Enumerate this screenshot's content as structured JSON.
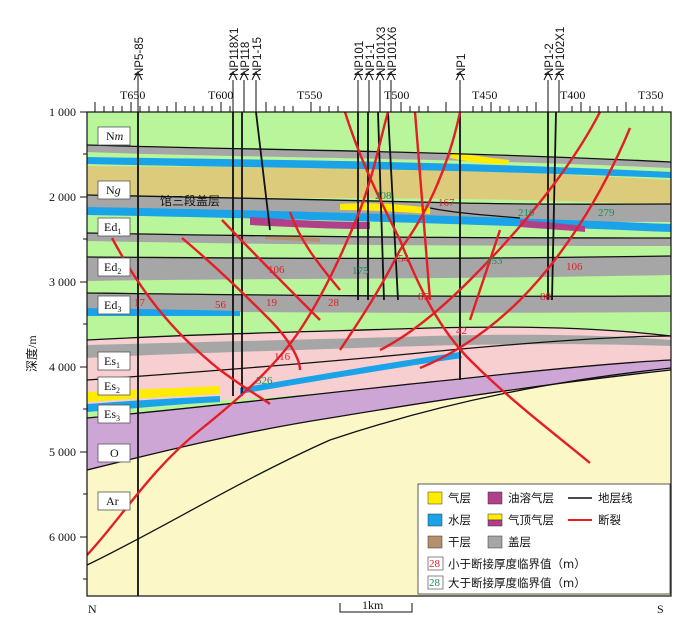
{
  "figure": {
    "y_axis_label": "深度/m",
    "depth_ticks": [
      "1 000",
      "2 000",
      "3 000",
      "4 000",
      "5 000",
      "6 000"
    ],
    "direction_left": "N",
    "direction_right": "S",
    "scale_bar": "1km",
    "seal_label": "馆三段盖层"
  },
  "wells": [
    "NP5-85",
    "NP118X1",
    "NP118",
    "NP1-15",
    "NP101",
    "NP1-1",
    "NP101X3",
    "NP101X6",
    "NP1",
    "NP1-2",
    "NP102X1"
  ],
  "traces": [
    "T650",
    "T600",
    "T550",
    "T500",
    "T450",
    "T400",
    "T350"
  ],
  "units": {
    "nm": {
      "base": "N",
      "sub": "m"
    },
    "ng": {
      "base": "N",
      "sub": "g"
    },
    "ed1": {
      "base": "Ed",
      "sub": "1"
    },
    "ed2": {
      "base": "Ed",
      "sub": "2"
    },
    "ed3": {
      "base": "Ed",
      "sub": "3"
    },
    "es1": {
      "base": "Es",
      "sub": "1"
    },
    "es2": {
      "base": "Es",
      "sub": "2"
    },
    "es3": {
      "base": "Es",
      "sub": "3"
    },
    "o": {
      "base": "O",
      "sub": ""
    },
    "ar": {
      "base": "Ar",
      "sub": ""
    }
  },
  "red_values": [
    "167",
    "106",
    "106",
    "54",
    "56",
    "19",
    "28",
    "85",
    "88",
    "17",
    "116",
    "42"
  ],
  "green_values": [
    "208",
    "210",
    "279",
    "175",
    "253",
    "526"
  ],
  "legend": {
    "gas": "气层",
    "oil_gas": "油溶气层",
    "stratum_line": "地层线",
    "water": "水层",
    "gas_cap": "气顶气层",
    "fault": "断裂",
    "dry": "干层",
    "cap": "盖层",
    "below_label": "小于断接厚度临界值（m）",
    "above_label": "大于断接厚度临界值（m）",
    "below_sample": "28",
    "above_sample": "28"
  },
  "colors": {
    "gas": "#ffec00",
    "oil_gas": "#b0408a",
    "water": "#1aa3e8",
    "dry": "#b5906a",
    "cap": "#a6a6a6",
    "fault": "#e41e26",
    "light_green": "#b9f59a",
    "khaki": "#dccb7a",
    "pink": "#f8cfd0",
    "purple": "#cda6d6",
    "cream": "#fbf7c6"
  }
}
